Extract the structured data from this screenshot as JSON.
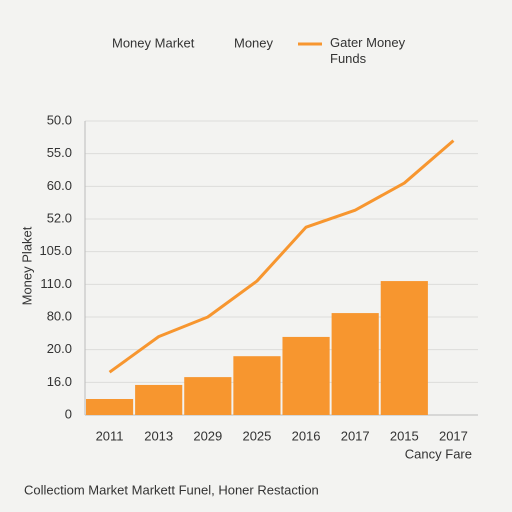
{
  "chart_data": {
    "type": "bar",
    "legend_note": "Money",
    "y_label": "Money Plaket",
    "x_label": "Cancy Fare",
    "footer": "Collectiom Market Markett Funel, Honer Restaction",
    "categories": [
      "2011",
      "2013",
      "2029",
      "2025",
      "2016",
      "2017",
      "2015",
      "2017"
    ],
    "series": [
      {
        "name": "Money Market",
        "type": "bar",
        "color": "#f7962f",
        "values": [
          0.49,
          0.92,
          1.16,
          1.8,
          2.39,
          3.12,
          4.1,
          null
        ]
      },
      {
        "name": "Gater Money Funds",
        "type": "line",
        "color": "#f7962f",
        "values": [
          1.31,
          2.4,
          3.0,
          4.1,
          5.75,
          6.27,
          7.1,
          8.4
        ]
      }
    ],
    "ylim": [
      0,
      9
    ],
    "yticks": [
      {
        "value": 0,
        "label": "0"
      },
      {
        "value": 1,
        "label": "16.0"
      },
      {
        "value": 2,
        "label": "20.0"
      },
      {
        "value": 3,
        "label": "80.0"
      },
      {
        "value": 4,
        "label": "110.0"
      },
      {
        "value": 5,
        "label": "105.0"
      },
      {
        "value": 6,
        "label": "52.0"
      },
      {
        "value": 7,
        "label": "60.0"
      },
      {
        "value": 8,
        "label": "55.0"
      },
      {
        "value": 9,
        "label": "50.0"
      }
    ],
    "grid": true
  }
}
